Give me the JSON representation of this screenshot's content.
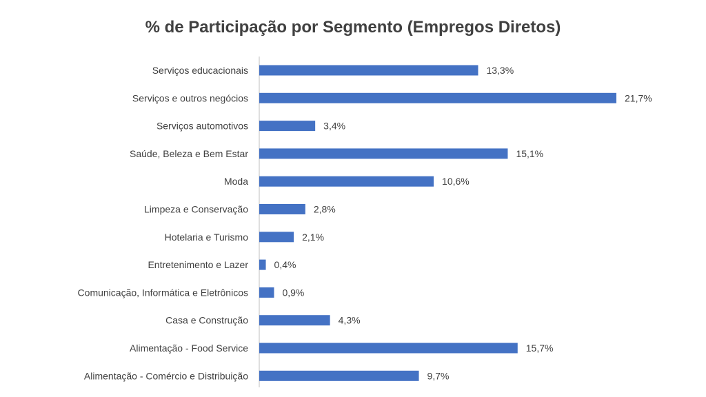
{
  "chart_data": {
    "type": "bar",
    "orientation": "horizontal",
    "title": "% de Participação por Segmento (Empregos Diretos)",
    "xlabel": "",
    "ylabel": "",
    "grid": false,
    "legend": "none",
    "bar_color": "#4472C4",
    "categories": [
      "Serviços educacionais",
      "Serviços e outros negócios",
      "Serviços automotivos",
      "Saúde, Beleza e Bem Estar",
      "Moda",
      "Limpeza e Conservação",
      "Hotelaria e Turismo",
      "Entretenimento e Lazer",
      "Comunicação, Informática e Eletrônicos",
      "Casa e Construção",
      "Alimentação - Food Service",
      "Alimentação - Comércio e Distribuição"
    ],
    "values": [
      13.3,
      21.7,
      3.4,
      15.1,
      10.6,
      2.8,
      2.1,
      0.4,
      0.9,
      4.3,
      15.7,
      9.7
    ],
    "value_labels": [
      "13,3%",
      "21,7%",
      "3,4%",
      "15,1%",
      "10,6%",
      "2,8%",
      "2,1%",
      "0,4%",
      "0,9%",
      "4,3%",
      "15,7%",
      "9,7%"
    ],
    "xlim": [
      0,
      21.7
    ]
  }
}
